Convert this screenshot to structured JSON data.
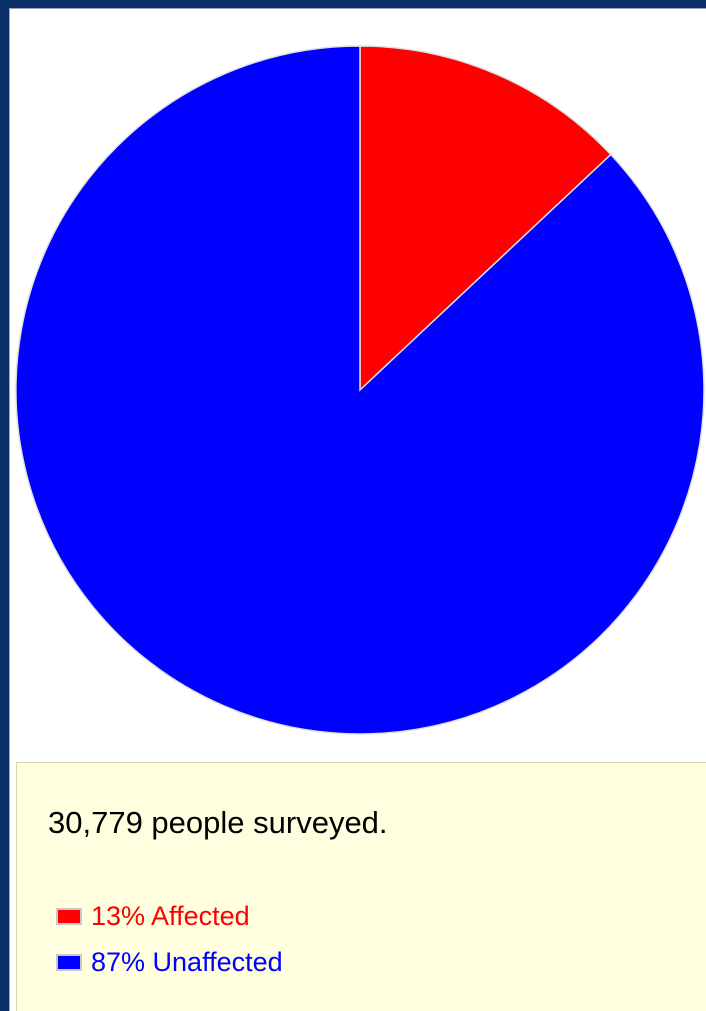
{
  "chart_data": {
    "type": "pie",
    "slices": [
      {
        "label": "Affected",
        "value": 13,
        "color": "#ff0000"
      },
      {
        "label": "Unaffected",
        "value": 87,
        "color": "#0000ff"
      }
    ]
  },
  "info": {
    "survey_text": "30,779 people surveyed."
  },
  "legend": {
    "items": [
      {
        "text": "13% Affected",
        "color": "#ff0000"
      },
      {
        "text": "87% Unaffected",
        "color": "#0000ff"
      }
    ]
  }
}
